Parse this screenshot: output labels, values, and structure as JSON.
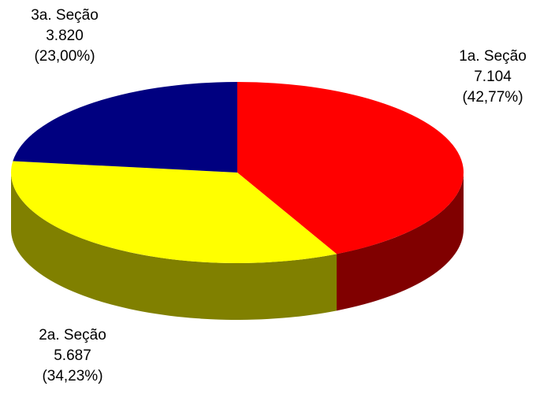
{
  "chart_data": {
    "type": "pie",
    "title": "",
    "style": "3d",
    "slices": [
      {
        "label": "1a. Seção",
        "value": 7104,
        "value_text": "7.104",
        "percent": 42.77,
        "percent_text": "(42,77%)",
        "color": "#ff0000",
        "side_color": "#800000"
      },
      {
        "label": "2a. Seção",
        "value": 5687,
        "value_text": "5.687",
        "percent": 34.23,
        "percent_text": "(34,23%)",
        "color": "#ffff00",
        "side_color": "#808000"
      },
      {
        "label": "3a. Seção",
        "value": 3820,
        "value_text": "3.820",
        "percent": 23.0,
        "percent_text": "(23,00%)",
        "color": "#000080",
        "side_color": "#000040"
      }
    ]
  }
}
